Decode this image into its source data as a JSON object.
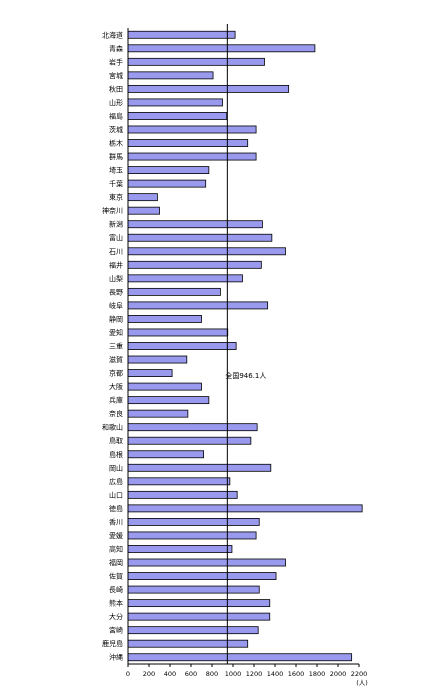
{
  "chart_data": {
    "type": "bar",
    "orientation": "horizontal",
    "categories": [
      "北海道",
      "青森",
      "岩手",
      "宮城",
      "秋田",
      "山形",
      "福島",
      "茨城",
      "栃木",
      "群馬",
      "埼玉",
      "千葉",
      "東京",
      "神奈川",
      "新潟",
      "富山",
      "石川",
      "福井",
      "山梨",
      "長野",
      "岐阜",
      "静岡",
      "愛知",
      "三重",
      "滋賀",
      "京都",
      "大阪",
      "兵庫",
      "奈良",
      "和歌山",
      "鳥取",
      "島根",
      "岡山",
      "広島",
      "山口",
      "徳島",
      "香川",
      "愛媛",
      "高知",
      "福岡",
      "佐賀",
      "長崎",
      "熊本",
      "大分",
      "宮崎",
      "鹿児島",
      "沖縄"
    ],
    "values": [
      1020,
      1780,
      1300,
      810,
      1530,
      900,
      940,
      1220,
      1140,
      1220,
      770,
      740,
      280,
      300,
      1280,
      1370,
      1500,
      1270,
      1090,
      880,
      1330,
      700,
      950,
      1030,
      560,
      420,
      700,
      770,
      570,
      1230,
      1170,
      720,
      1360,
      970,
      1040,
      2230,
      1250,
      1220,
      990,
      1500,
      1410,
      1250,
      1350,
      1350,
      1240,
      1140,
      2130
    ],
    "xlim": [
      0,
      2200
    ],
    "xticks": [
      "0",
      "200",
      "400",
      "600",
      "800",
      "1000",
      "1200",
      "1400",
      "1600",
      "1800",
      "2000",
      "2200"
    ],
    "unit": "(人)",
    "reference_line": {
      "value": 946.1,
      "label": "全国946.1人"
    },
    "colors": {
      "bar": "#9999ee",
      "outline": "#000000"
    }
  }
}
